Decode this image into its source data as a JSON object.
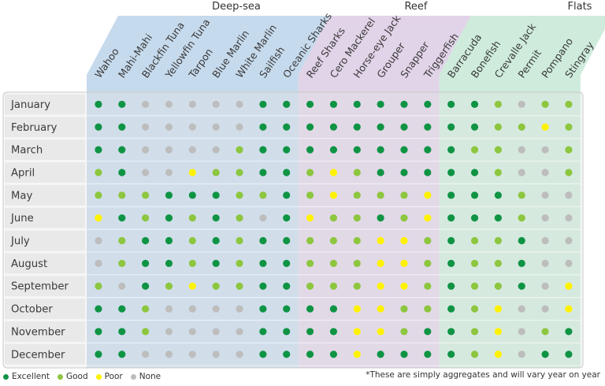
{
  "chart_data": {
    "type": "table",
    "title": "",
    "groups": [
      {
        "name": "Deep-sea",
        "color": "#bcd3ea"
      },
      {
        "name": "Reef",
        "color": "#dccbe4"
      },
      {
        "name": "Flats",
        "color": "#c6e7d6"
      }
    ],
    "species": [
      {
        "name": "Wahoo",
        "group": "Deep-sea"
      },
      {
        "name": "Mahi-Mahi",
        "group": "Deep-sea"
      },
      {
        "name": "Blackfin Tuna",
        "group": "Deep-sea"
      },
      {
        "name": "Yellowfin Tuna",
        "group": "Deep-sea"
      },
      {
        "name": "Tarpon",
        "group": "Deep-sea"
      },
      {
        "name": "Blue Marlin",
        "group": "Deep-sea"
      },
      {
        "name": "White Marlin",
        "group": "Deep-sea"
      },
      {
        "name": "Sailfish",
        "group": "Deep-sea"
      },
      {
        "name": "Oceanic Sharks",
        "group": "Deep-sea"
      },
      {
        "name": "Reef Sharks",
        "group": "Reef"
      },
      {
        "name": "Cero Mackerel",
        "group": "Reef"
      },
      {
        "name": "Horse-eye Jack",
        "group": "Reef"
      },
      {
        "name": "Grouper",
        "group": "Reef"
      },
      {
        "name": "Snapper",
        "group": "Reef"
      },
      {
        "name": "Triggerfish",
        "group": "Reef"
      },
      {
        "name": "Barracuda",
        "group": "Flats"
      },
      {
        "name": "Bonefish",
        "group": "Flats"
      },
      {
        "name": "Crevalle Jack",
        "group": "Flats"
      },
      {
        "name": "Permit",
        "group": "Flats"
      },
      {
        "name": "Pompano",
        "group": "Flats"
      },
      {
        "name": "Stingray",
        "group": "Flats"
      }
    ],
    "months": [
      "January",
      "February",
      "March",
      "April",
      "May",
      "June",
      "July",
      "August",
      "September",
      "October",
      "November",
      "December"
    ],
    "ratings_legend": [
      {
        "key": "E",
        "label": "Excellent",
        "color": "#0f9444"
      },
      {
        "key": "G",
        "label": "Good",
        "color": "#8dc63f"
      },
      {
        "key": "P",
        "label": "Poor",
        "color": "#fff200"
      },
      {
        "key": "N",
        "label": "None",
        "color": "#bdbdbd"
      }
    ],
    "ratings": [
      [
        "E",
        "E",
        "N",
        "N",
        "N",
        "N",
        "N",
        "E",
        "E",
        "E",
        "E",
        "E",
        "E",
        "E",
        "E",
        "E",
        "E",
        "G",
        "N",
        "G",
        "G"
      ],
      [
        "E",
        "E",
        "N",
        "N",
        "N",
        "N",
        "N",
        "E",
        "E",
        "E",
        "E",
        "E",
        "E",
        "E",
        "E",
        "E",
        "E",
        "G",
        "G",
        "P",
        "G"
      ],
      [
        "E",
        "E",
        "N",
        "N",
        "N",
        "N",
        "G",
        "E",
        "E",
        "E",
        "E",
        "E",
        "E",
        "E",
        "E",
        "E",
        "G",
        "G",
        "N",
        "N",
        "G"
      ],
      [
        "G",
        "E",
        "N",
        "N",
        "P",
        "G",
        "G",
        "E",
        "E",
        "G",
        "P",
        "G",
        "E",
        "E",
        "E",
        "E",
        "E",
        "G",
        "N",
        "N",
        "G"
      ],
      [
        "G",
        "G",
        "G",
        "E",
        "E",
        "E",
        "G",
        "G",
        "E",
        "G",
        "P",
        "G",
        "G",
        "G",
        "P",
        "E",
        "E",
        "E",
        "G",
        "N",
        "N"
      ],
      [
        "P",
        "E",
        "G",
        "E",
        "G",
        "E",
        "G",
        "N",
        "E",
        "P",
        "G",
        "G",
        "E",
        "G",
        "P",
        "E",
        "E",
        "E",
        "G",
        "N",
        "N"
      ],
      [
        "N",
        "G",
        "E",
        "E",
        "G",
        "E",
        "G",
        "E",
        "E",
        "G",
        "G",
        "G",
        "P",
        "P",
        "G",
        "E",
        "G",
        "G",
        "E",
        "N",
        "N"
      ],
      [
        "N",
        "G",
        "E",
        "E",
        "G",
        "E",
        "G",
        "E",
        "E",
        "G",
        "G",
        "G",
        "P",
        "P",
        "G",
        "E",
        "G",
        "G",
        "E",
        "N",
        "N"
      ],
      [
        "G",
        "N",
        "E",
        "G",
        "P",
        "G",
        "G",
        "E",
        "E",
        "G",
        "G",
        "G",
        "P",
        "P",
        "G",
        "E",
        "G",
        "G",
        "E",
        "N",
        "P"
      ],
      [
        "E",
        "E",
        "G",
        "N",
        "N",
        "N",
        "N",
        "E",
        "E",
        "E",
        "E",
        "P",
        "P",
        "G",
        "G",
        "E",
        "G",
        "P",
        "N",
        "N",
        "P"
      ],
      [
        "E",
        "E",
        "G",
        "N",
        "N",
        "N",
        "N",
        "E",
        "E",
        "E",
        "E",
        "P",
        "P",
        "G",
        "E",
        "E",
        "G",
        "P",
        "N",
        "G",
        "E"
      ],
      [
        "E",
        "E",
        "N",
        "N",
        "N",
        "N",
        "N",
        "E",
        "E",
        "E",
        "E",
        "P",
        "E",
        "E",
        "E",
        "E",
        "G",
        "P",
        "N",
        "E",
        "E"
      ]
    ]
  },
  "legend": [
    {
      "label": "Excellent",
      "color": "#0f9444"
    },
    {
      "label": "Good",
      "color": "#8dc63f"
    },
    {
      "label": "Poor",
      "color": "#fff200"
    },
    {
      "label": "None",
      "color": "#bdbdbd"
    }
  ],
  "footnote": "*These are simply aggregates and will vary year on year"
}
